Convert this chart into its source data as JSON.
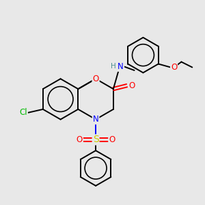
{
  "background_color": "#e8e8e8",
  "atom_colors": {
    "C": "#000000",
    "N": "#0000ff",
    "O": "#ff0000",
    "S": "#cccc00",
    "Cl": "#00bb00",
    "H": "#4a9090"
  },
  "figsize": [
    3.0,
    3.0
  ],
  "dpi": 100,
  "bond_lw": 1.4,
  "font_size": 8.5
}
